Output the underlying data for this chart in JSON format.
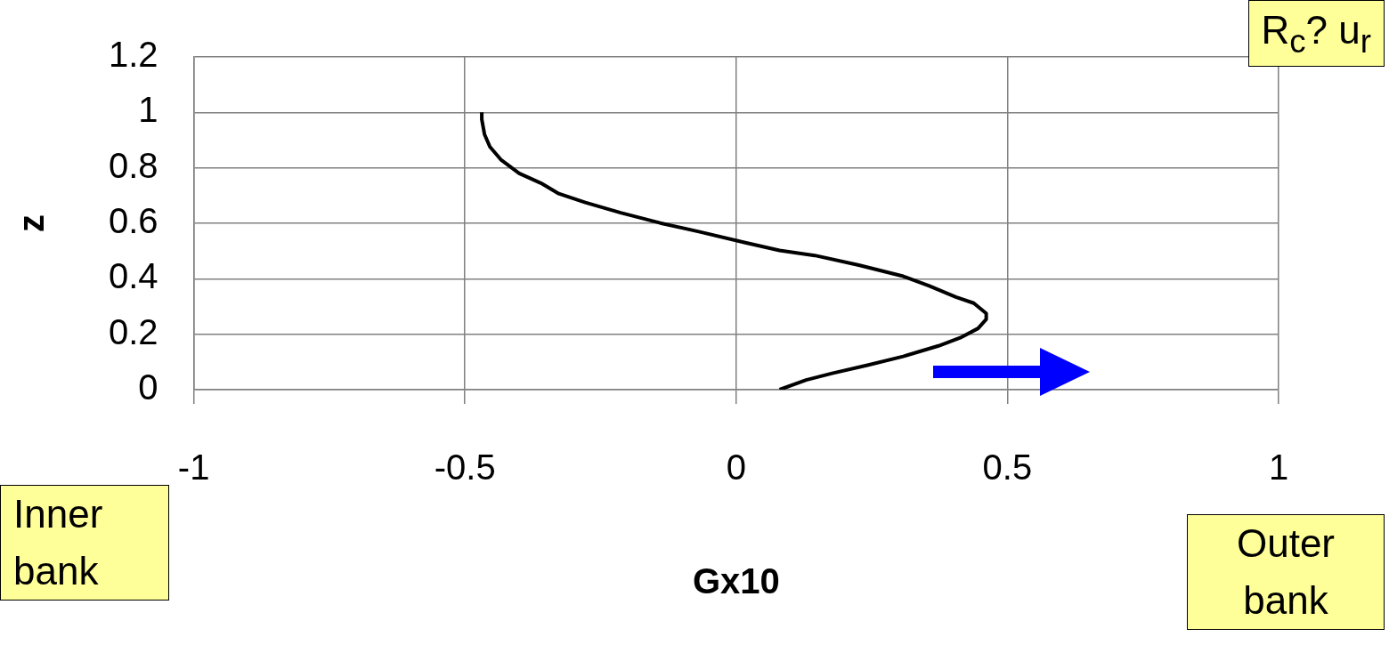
{
  "chart_data": {
    "type": "line",
    "xlabel": "Gx10",
    "ylabel": "z",
    "series": [
      {
        "color": "#000000",
        "x": [
          0.08,
          0.129,
          0.177,
          0.242,
          0.308,
          0.373,
          0.413,
          0.446,
          0.461,
          0.461,
          0.438,
          0.405,
          0.356,
          0.308,
          0.226,
          0.145,
          0.08,
          0.015,
          -0.067,
          -0.14,
          -0.213,
          -0.278,
          -0.327,
          -0.36,
          -0.4,
          -0.433,
          -0.454,
          -0.464,
          -0.469,
          -0.469
        ],
        "values": [
          0,
          0.035,
          0.059,
          0.088,
          0.12,
          0.158,
          0.187,
          0.221,
          0.254,
          0.275,
          0.312,
          0.334,
          0.374,
          0.409,
          0.449,
          0.484,
          0.502,
          0.531,
          0.569,
          0.601,
          0.638,
          0.675,
          0.707,
          0.745,
          0.78,
          0.828,
          0.876,
          0.921,
          0.975,
          1.0
        ]
      }
    ],
    "xlim": [
      -1,
      1
    ],
    "xticks": [
      -1,
      -0.5,
      0,
      0.5,
      1
    ],
    "ylim": [
      0,
      1.2
    ],
    "yticks": [
      0,
      0.2,
      0.4,
      0.6,
      0.8,
      1,
      1.2
    ],
    "grid": true,
    "marker": "none",
    "line_style": "solid",
    "legend": false,
    "annotations": [
      "R$_{c}$? u$_{r}$",
      "Inner bank",
      "Outer bank"
    ]
  }
}
